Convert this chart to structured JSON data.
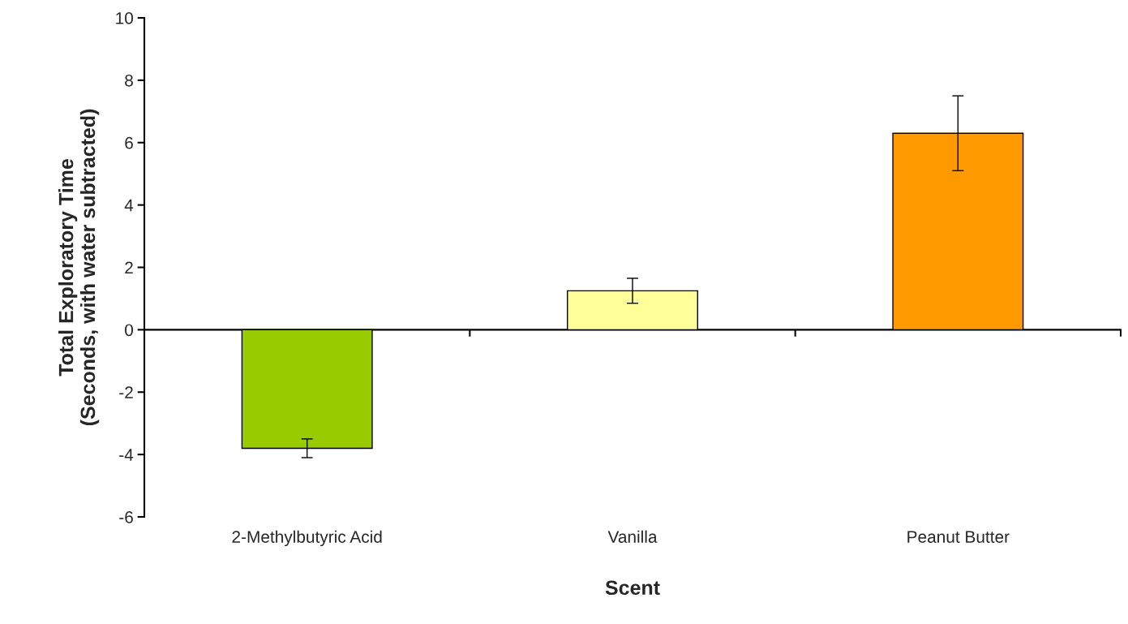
{
  "chart_data": {
    "type": "bar",
    "categories": [
      "2-Methylbutyric Acid",
      "Vanilla",
      "Peanut Butter"
    ],
    "values": [
      -3.8,
      1.25,
      6.3
    ],
    "errors": [
      0.3,
      0.4,
      1.2
    ],
    "colors": [
      "#99cc00",
      "#ffff99",
      "#ff9900"
    ],
    "ylim": [
      -6,
      10
    ],
    "yticks": [
      -6,
      -4,
      -2,
      0,
      2,
      4,
      6,
      8,
      10
    ],
    "xlabel": "Scent",
    "ylabel": "Total Exploratory Time\n(Seconds, with water subtracted)",
    "legend": false
  }
}
